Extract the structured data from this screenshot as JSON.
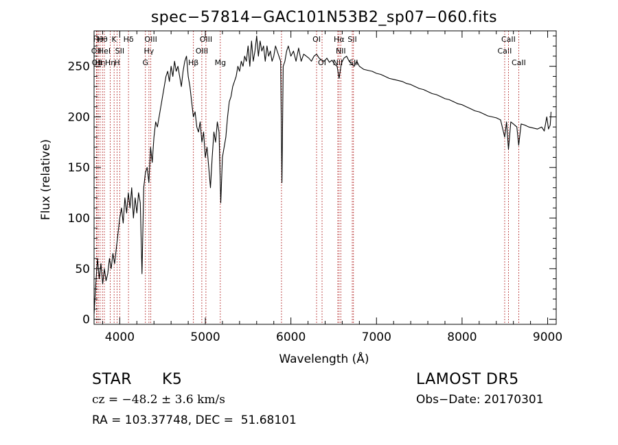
{
  "chart_data": {
    "type": "line",
    "title": "spec−57814−GAC101N53B2_sp07−060.fits",
    "xlabel": "Wavelength (Å)",
    "ylabel": "Flux (relative)",
    "xlim": [
      3700,
      9100
    ],
    "ylim": [
      -5,
      285
    ],
    "xticks": [
      4000,
      5000,
      6000,
      7000,
      8000,
      9000
    ],
    "yticks": [
      0,
      50,
      100,
      150,
      200,
      250
    ],
    "xtick_labels": [
      "4000",
      "5000",
      "6000",
      "7000",
      "8000",
      "9000"
    ],
    "ytick_labels": [
      "0",
      "50",
      "100",
      "150",
      "200",
      "250"
    ],
    "line_color": "#000000",
    "marker_color": "#b22222",
    "series": [
      {
        "x": [
          3700,
          3720,
          3740,
          3760,
          3780,
          3800,
          3820,
          3840,
          3860,
          3880,
          3900,
          3920,
          3940,
          3960,
          3980,
          4000,
          4020,
          4040,
          4060,
          4080,
          4100,
          4120,
          4140,
          4160,
          4180,
          4200,
          4220,
          4240,
          4260,
          4280,
          4300,
          4320,
          4340,
          4360,
          4380,
          4400,
          4420,
          4440,
          4460,
          4480,
          4500,
          4520,
          4540,
          4560,
          4580,
          4600,
          4620,
          4640,
          4660,
          4680,
          4700,
          4720,
          4740,
          4760,
          4780,
          4800,
          4820,
          4840,
          4860,
          4880,
          4900,
          4920,
          4940,
          4960,
          4980,
          5000,
          5020,
          5040,
          5060,
          5080,
          5100,
          5120,
          5140,
          5160,
          5180,
          5200,
          5220,
          5240,
          5260,
          5280,
          5300,
          5320,
          5340,
          5360,
          5380,
          5400,
          5420,
          5440,
          5460,
          5480,
          5500,
          5520,
          5540,
          5560,
          5580,
          5600,
          5620,
          5640,
          5660,
          5680,
          5700,
          5720,
          5740,
          5760,
          5780,
          5800,
          5820,
          5840,
          5860,
          5880,
          5895,
          5910,
          5930,
          5950,
          5970,
          6000,
          6030,
          6060,
          6090,
          6120,
          6150,
          6180,
          6210,
          6240,
          6270,
          6300,
          6330,
          6360,
          6390,
          6420,
          6450,
          6480,
          6510,
          6540,
          6563,
          6590,
          6620,
          6650,
          6680,
          6710,
          6740,
          6770,
          6800,
          6850,
          6900,
          6950,
          7000,
          7050,
          7100,
          7150,
          7200,
          7250,
          7300,
          7350,
          7400,
          7450,
          7500,
          7550,
          7600,
          7650,
          7700,
          7750,
          7800,
          7850,
          7900,
          7950,
          8000,
          8050,
          8100,
          8150,
          8200,
          8250,
          8300,
          8350,
          8400,
          8450,
          8498,
          8520,
          8542,
          8570,
          8600,
          8640,
          8662,
          8690,
          8730,
          8780,
          8830,
          8880,
          8930,
          8960,
          8990,
          9010,
          9030,
          9040
        ],
        "y": [
          5,
          35,
          60,
          40,
          55,
          35,
          50,
          38,
          45,
          60,
          50,
          65,
          55,
          70,
          85,
          100,
          110,
          95,
          120,
          105,
          125,
          110,
          130,
          100,
          120,
          105,
          125,
          115,
          45,
          130,
          145,
          150,
          135,
          170,
          155,
          180,
          195,
          190,
          200,
          210,
          220,
          230,
          240,
          245,
          235,
          250,
          240,
          255,
          245,
          250,
          240,
          230,
          245,
          255,
          260,
          240,
          230,
          215,
          200,
          205,
          190,
          185,
          195,
          175,
          185,
          160,
          170,
          150,
          130,
          160,
          185,
          175,
          195,
          185,
          115,
          160,
          170,
          180,
          200,
          215,
          220,
          230,
          235,
          240,
          250,
          245,
          255,
          250,
          260,
          255,
          270,
          250,
          275,
          255,
          265,
          280,
          260,
          275,
          265,
          270,
          255,
          270,
          260,
          265,
          255,
          260,
          270,
          265,
          260,
          255,
          135,
          250,
          255,
          265,
          270,
          260,
          265,
          255,
          268,
          255,
          262,
          260,
          258,
          255,
          260,
          262,
          258,
          256,
          255,
          258,
          254,
          256,
          252,
          250,
          238,
          253,
          258,
          260,
          255,
          252,
          250,
          255,
          250,
          247,
          246,
          245,
          243,
          242,
          240,
          238,
          237,
          236,
          235,
          233,
          232,
          230,
          228,
          227,
          225,
          223,
          222,
          220,
          218,
          217,
          215,
          213,
          212,
          210,
          208,
          206,
          205,
          203,
          201,
          200,
          199,
          197,
          180,
          195,
          168,
          195,
          193,
          190,
          172,
          193,
          192,
          190,
          189,
          188,
          190,
          186,
          200,
          188,
          192,
          205
        ]
      }
    ],
    "line_markers": [
      {
        "x": 3727,
        "label": "OII",
        "row": 1
      },
      {
        "x": 3734,
        "label": "OII",
        "row": 2
      },
      {
        "x": 3750,
        "label": "Hθ",
        "row": 0
      },
      {
        "x": 3771,
        "label": "Hη",
        "row": 2
      },
      {
        "x": 3798,
        "label": "Hθ",
        "row": 0
      },
      {
        "x": 3820,
        "label": "HeI",
        "row": 1
      },
      {
        "x": 3889,
        "label": "Hη",
        "row": 2
      },
      {
        "x": 3934,
        "label": "K",
        "row": 0
      },
      {
        "x": 3969,
        "label": "H",
        "row": 2
      },
      {
        "x": 4000,
        "label": "SII",
        "row": 1
      },
      {
        "x": 4102,
        "label": "Hδ",
        "row": 0
      },
      {
        "x": 4300,
        "label": "G",
        "row": 2
      },
      {
        "x": 4341,
        "label": "Hγ",
        "row": 1
      },
      {
        "x": 4363,
        "label": "OIII",
        "row": 0
      },
      {
        "x": 4861,
        "label": "Hβ",
        "row": 2
      },
      {
        "x": 4959,
        "label": "OIII",
        "row": 1
      },
      {
        "x": 5007,
        "label": "OIII",
        "row": 0
      },
      {
        "x": 5175,
        "label": "Mg",
        "row": 2
      },
      {
        "x": 5890,
        "label": "",
        "row": 0
      },
      {
        "x": 6300,
        "label": "OI",
        "row": 0
      },
      {
        "x": 6364,
        "label": "OI",
        "row": 2
      },
      {
        "x": 6548,
        "label": "NII",
        "row": 2
      },
      {
        "x": 6563,
        "label": "Hα",
        "row": 0
      },
      {
        "x": 6583,
        "label": "NII",
        "row": 1
      },
      {
        "x": 6717,
        "label": "SII",
        "row": 0
      },
      {
        "x": 6731,
        "label": "SII",
        "row": 2
      },
      {
        "x": 8498,
        "label": "CaII",
        "row": 1
      },
      {
        "x": 8542,
        "label": "CaII",
        "row": 0
      },
      {
        "x": 8662,
        "label": "CaII",
        "row": 2
      }
    ]
  },
  "info": {
    "object_class": "STAR",
    "subclass": "K5",
    "survey": "LAMOST DR5",
    "redshift_text": "cz = −48.2 ± 3.6 km/s",
    "obs_date": "Obs−Date: 20170301",
    "coords": "RA = 103.37748, DEC =  51.68101"
  }
}
